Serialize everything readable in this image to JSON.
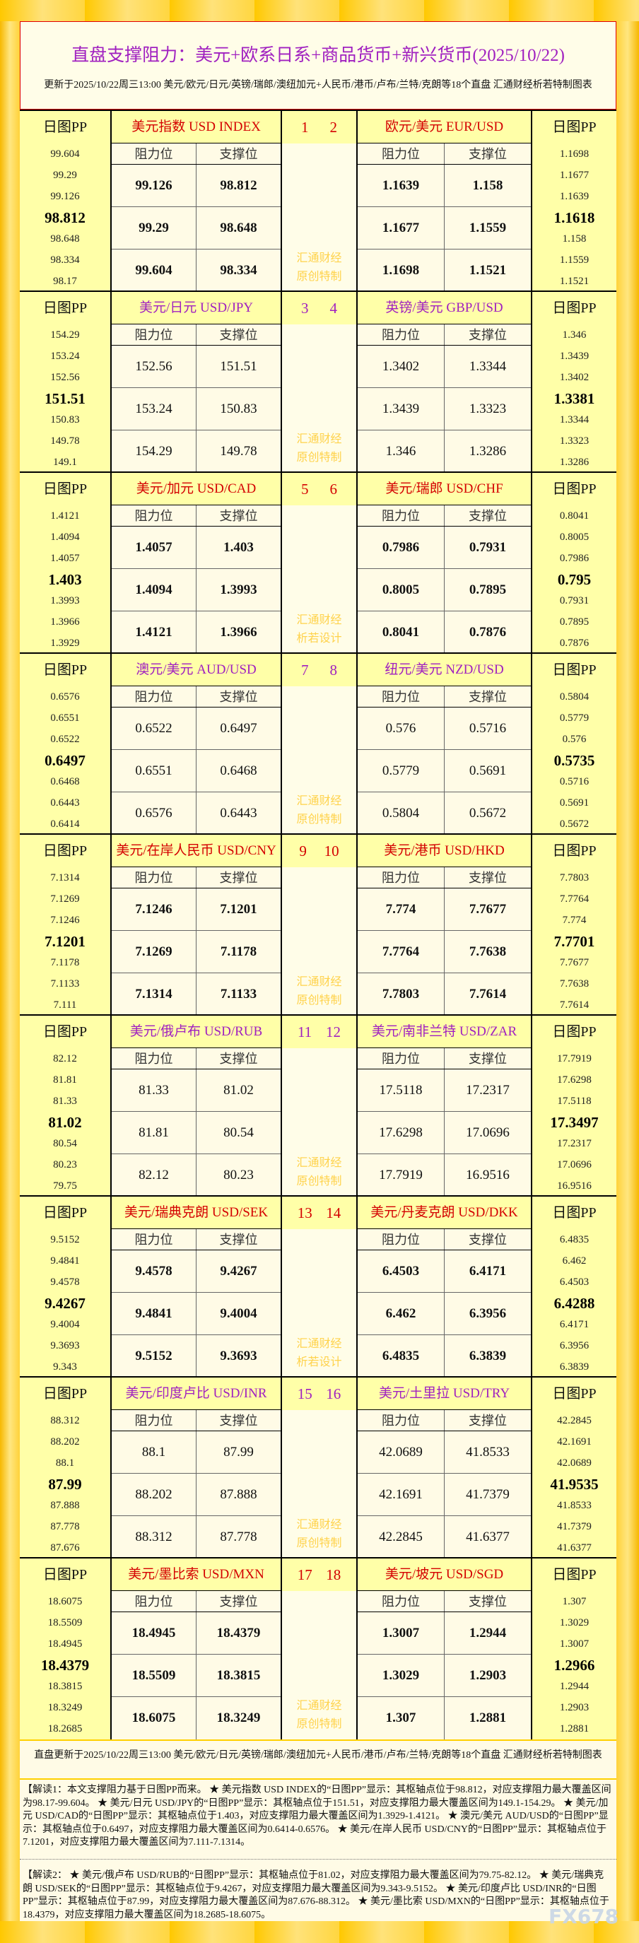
{
  "title": "直盘支撑阻力：美元+欧系日系+商品货币+新兴货币(2025/10/22)",
  "subtitle": "更新于2025/10/22周三13:00 美元/欧元/日元/英镑/瑞郎/澳纽加元+人民币/港币/卢布/兰特/克朗等18个直盘 汇通财经析若特制图表",
  "pp_label": "日图PP",
  "res_label": "阻力位",
  "sup_label": "支撑位",
  "watermark_top": "汇通财经",
  "colors": {
    "red": "#d40000",
    "purple": "#a020c0",
    "pp_bg": "#ffffa8",
    "cell_bg": "#fffbe6",
    "frame": "#ffd23a"
  },
  "blocks": [
    {
      "color": "red",
      "nums": [
        "1",
        "2"
      ],
      "wm": "原创特制",
      "left": {
        "name": "美元指数 USD INDEX",
        "pp": [
          "99.604",
          "99.29",
          "99.126",
          "98.812",
          "98.648",
          "98.334",
          "98.17"
        ],
        "rows": [
          [
            "99.126",
            "98.812"
          ],
          [
            "99.29",
            "98.648"
          ],
          [
            "99.604",
            "98.334"
          ]
        ]
      },
      "right": {
        "name": "欧元/美元 EUR/USD",
        "pp": [
          "1.1698",
          "1.1677",
          "1.1639",
          "1.1618",
          "1.158",
          "1.1559",
          "1.1521"
        ],
        "rows": [
          [
            "1.1639",
            "1.158"
          ],
          [
            "1.1677",
            "1.1559"
          ],
          [
            "1.1698",
            "1.1521"
          ]
        ]
      }
    },
    {
      "color": "purple",
      "nums": [
        "3",
        "4"
      ],
      "wm": "原创特制",
      "left": {
        "name": "美元/日元 USD/JPY",
        "pp": [
          "154.29",
          "153.24",
          "152.56",
          "151.51",
          "150.83",
          "149.78",
          "149.1"
        ],
        "rows": [
          [
            "152.56",
            "151.51"
          ],
          [
            "153.24",
            "150.83"
          ],
          [
            "154.29",
            "149.78"
          ]
        ]
      },
      "right": {
        "name": "英镑/美元 GBP/USD",
        "pp": [
          "1.346",
          "1.3439",
          "1.3402",
          "1.3381",
          "1.3344",
          "1.3323",
          "1.3286"
        ],
        "rows": [
          [
            "1.3402",
            "1.3344"
          ],
          [
            "1.3439",
            "1.3323"
          ],
          [
            "1.346",
            "1.3286"
          ]
        ]
      }
    },
    {
      "color": "red",
      "nums": [
        "5",
        "6"
      ],
      "wm": "析若设计",
      "left": {
        "name": "美元/加元 USD/CAD",
        "pp": [
          "1.4121",
          "1.4094",
          "1.4057",
          "1.403",
          "1.3993",
          "1.3966",
          "1.3929"
        ],
        "rows": [
          [
            "1.4057",
            "1.403"
          ],
          [
            "1.4094",
            "1.3993"
          ],
          [
            "1.4121",
            "1.3966"
          ]
        ]
      },
      "right": {
        "name": "美元/瑞郎 USD/CHF",
        "pp": [
          "0.8041",
          "0.8005",
          "0.7986",
          "0.795",
          "0.7931",
          "0.7895",
          "0.7876"
        ],
        "rows": [
          [
            "0.7986",
            "0.7931"
          ],
          [
            "0.8005",
            "0.7895"
          ],
          [
            "0.8041",
            "0.7876"
          ]
        ]
      }
    },
    {
      "color": "purple",
      "nums": [
        "7",
        "8"
      ],
      "wm": "原创特制",
      "left": {
        "name": "澳元/美元 AUD/USD",
        "pp": [
          "0.6576",
          "0.6551",
          "0.6522",
          "0.6497",
          "0.6468",
          "0.6443",
          "0.6414"
        ],
        "rows": [
          [
            "0.6522",
            "0.6497"
          ],
          [
            "0.6551",
            "0.6468"
          ],
          [
            "0.6576",
            "0.6443"
          ]
        ]
      },
      "right": {
        "name": "纽元/美元 NZD/USD",
        "pp": [
          "0.5804",
          "0.5779",
          "0.576",
          "0.5735",
          "0.5716",
          "0.5691",
          "0.5672"
        ],
        "rows": [
          [
            "0.576",
            "0.5716"
          ],
          [
            "0.5779",
            "0.5691"
          ],
          [
            "0.5804",
            "0.5672"
          ]
        ]
      }
    },
    {
      "color": "red",
      "nums": [
        "9",
        "10"
      ],
      "wm": "原创特制",
      "left": {
        "name": "美元/在岸人民币 USD/CNY",
        "pp": [
          "7.1314",
          "7.1269",
          "7.1246",
          "7.1201",
          "7.1178",
          "7.1133",
          "7.111"
        ],
        "rows": [
          [
            "7.1246",
            "7.1201"
          ],
          [
            "7.1269",
            "7.1178"
          ],
          [
            "7.1314",
            "7.1133"
          ]
        ]
      },
      "right": {
        "name": "美元/港币 USD/HKD",
        "pp": [
          "7.7803",
          "7.7764",
          "7.774",
          "7.7701",
          "7.7677",
          "7.7638",
          "7.7614"
        ],
        "rows": [
          [
            "7.774",
            "7.7677"
          ],
          [
            "7.7764",
            "7.7638"
          ],
          [
            "7.7803",
            "7.7614"
          ]
        ]
      }
    },
    {
      "color": "purple",
      "nums": [
        "11",
        "12"
      ],
      "wm": "原创特制",
      "left": {
        "name": "美元/俄卢布 USD/RUB",
        "pp": [
          "82.12",
          "81.81",
          "81.33",
          "81.02",
          "80.54",
          "80.23",
          "79.75"
        ],
        "rows": [
          [
            "81.33",
            "81.02"
          ],
          [
            "81.81",
            "80.54"
          ],
          [
            "82.12",
            "80.23"
          ]
        ]
      },
      "right": {
        "name": "美元/南非兰特 USD/ZAR",
        "pp": [
          "17.7919",
          "17.6298",
          "17.5118",
          "17.3497",
          "17.2317",
          "17.0696",
          "16.9516"
        ],
        "rows": [
          [
            "17.5118",
            "17.2317"
          ],
          [
            "17.6298",
            "17.0696"
          ],
          [
            "17.7919",
            "16.9516"
          ]
        ]
      }
    },
    {
      "color": "red",
      "nums": [
        "13",
        "14"
      ],
      "wm": "析若设计",
      "left": {
        "name": "美元/瑞典克朗 USD/SEK",
        "pp": [
          "9.5152",
          "9.4841",
          "9.4578",
          "9.4267",
          "9.4004",
          "9.3693",
          "9.343"
        ],
        "rows": [
          [
            "9.4578",
            "9.4267"
          ],
          [
            "9.4841",
            "9.4004"
          ],
          [
            "9.5152",
            "9.3693"
          ]
        ]
      },
      "right": {
        "name": "美元/丹麦克朗 USD/DKK",
        "pp": [
          "6.4835",
          "6.462",
          "6.4503",
          "6.4288",
          "6.4171",
          "6.3956",
          "6.3839"
        ],
        "rows": [
          [
            "6.4503",
            "6.4171"
          ],
          [
            "6.462",
            "6.3956"
          ],
          [
            "6.4835",
            "6.3839"
          ]
        ]
      }
    },
    {
      "color": "purple",
      "nums": [
        "15",
        "16"
      ],
      "wm": "原创特制",
      "left": {
        "name": "美元/印度卢比 USD/INR",
        "pp": [
          "88.312",
          "88.202",
          "88.1",
          "87.99",
          "87.888",
          "87.778",
          "87.676"
        ],
        "rows": [
          [
            "88.1",
            "87.99"
          ],
          [
            "88.202",
            "87.888"
          ],
          [
            "88.312",
            "87.778"
          ]
        ]
      },
      "right": {
        "name": "美元/土里拉 USD/TRY",
        "pp": [
          "42.2845",
          "42.1691",
          "42.0689",
          "41.9535",
          "41.8533",
          "41.7379",
          "41.6377"
        ],
        "rows": [
          [
            "42.0689",
            "41.8533"
          ],
          [
            "42.1691",
            "41.7379"
          ],
          [
            "42.2845",
            "41.6377"
          ]
        ]
      }
    },
    {
      "color": "red",
      "nums": [
        "17",
        "18"
      ],
      "wm": "原创特制",
      "left": {
        "name": "美元/墨比索 USD/MXN",
        "pp": [
          "18.6075",
          "18.5509",
          "18.4945",
          "18.4379",
          "18.3815",
          "18.3249",
          "18.2685"
        ],
        "rows": [
          [
            "18.4945",
            "18.4379"
          ],
          [
            "18.5509",
            "18.3815"
          ],
          [
            "18.6075",
            "18.3249"
          ]
        ]
      },
      "right": {
        "name": "美元/坡元 USD/SGD",
        "pp": [
          "1.307",
          "1.3029",
          "1.3007",
          "1.2966",
          "1.2944",
          "1.2903",
          "1.2881"
        ],
        "rows": [
          [
            "1.3007",
            "1.2944"
          ],
          [
            "1.3029",
            "1.2903"
          ],
          [
            "1.307",
            "1.2881"
          ]
        ]
      }
    }
  ],
  "footer": {
    "update": "直盘更新于2025/10/22周三13:00 美元/欧元/日元/英镑/瑞郎/澳纽加元+人民币/港币/卢布/兰特/克朗等18个直盘 汇通财经析若特制图表",
    "interp1": "【解读1：本文支撑阻力基于日图PP而来。 ★ 美元指数 USD INDEX的“日图PP”显示：其枢轴点位于98.812，对应支撑阻力最大覆盖区间为98.17-99.604。 ★ 美元/日元 USD/JPY的“日图PP”显示：其枢轴点位于151.51，对应支撑阻力最大覆盖区间为149.1-154.29。 ★ 美元/加元 USD/CAD的“日图PP”显示：其枢轴点位于1.403，对应支撑阻力最大覆盖区间为1.3929-1.4121。 ★ 澳元/美元 AUD/USD的“日图PP”显示：其枢轴点位于0.6497，对应支撑阻力最大覆盖区间为0.6414-0.6576。 ★ 美元/在岸人民币 USD/CNY的“日图PP”显示：其枢轴点位于7.1201，对应支撑阻力最大覆盖区间为7.111-7.1314。",
    "interp2": "【解读2： ★ 美元/俄卢布 USD/RUB的“日图PP”显示：其枢轴点位于81.02，对应支撑阻力最大覆盖区间为79.75-82.12。 ★ 美元/瑞典克朗 USD/SEK的“日图PP”显示：其枢轴点位于9.4267，对应支撑阻力最大覆盖区间为9.343-9.5152。 ★ 美元/印度卢比 USD/INR的“日图PP”显示：其枢轴点位于87.99，对应支撑阻力最大覆盖区间为87.676-88.312。 ★ 美元/墨比索 USD/MXN的“日图PP”显示：其枢轴点位于18.4379，对应支撑阻力最大覆盖区间为18.2685-18.6075。",
    "logo": "FX678"
  }
}
